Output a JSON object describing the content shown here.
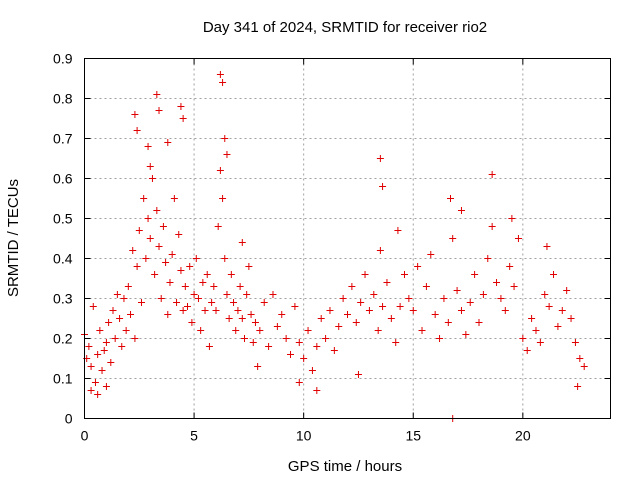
{
  "chart_data": {
    "type": "scatter",
    "title": "Day 341 of 2024, SRMTID for receiver rio2",
    "xlabel": "GPS time / hours",
    "ylabel": "SRMTID / TECUs",
    "xlim": [
      0,
      24
    ],
    "ylim": [
      0,
      0.9
    ],
    "xticks": [
      0,
      5,
      10,
      15,
      20
    ],
    "xtick_labels": [
      "0",
      "5",
      "10",
      "15",
      "20"
    ],
    "yticks": [
      0,
      0.1,
      0.2,
      0.3,
      0.4,
      0.5,
      0.6,
      0.7,
      0.8,
      0.9
    ],
    "ytick_labels": [
      "0",
      "0.1",
      "0.2",
      "0.3",
      "0.4",
      "0.5",
      "0.6",
      "0.7",
      "0.8",
      "0.9"
    ],
    "grid": true,
    "marker": "+",
    "color": "#e00000",
    "series": [
      {
        "name": "SRMTID",
        "x": [
          0.0,
          0.1,
          0.2,
          0.3,
          0.4,
          0.5,
          0.6,
          0.7,
          0.8,
          0.9,
          1.0,
          1.1,
          1.2,
          1.3,
          1.4,
          1.5,
          1.6,
          1.7,
          1.8,
          1.9,
          2.0,
          2.1,
          2.2,
          2.3,
          2.4,
          2.5,
          2.6,
          2.7,
          2.8,
          2.9,
          3.0,
          3.1,
          3.2,
          3.3,
          3.4,
          3.5,
          3.6,
          3.7,
          3.8,
          3.9,
          4.0,
          4.1,
          4.2,
          4.3,
          4.4,
          4.5,
          4.6,
          4.7,
          4.8,
          4.9,
          5.0,
          5.1,
          5.2,
          5.3,
          5.4,
          5.5,
          5.6,
          5.7,
          5.8,
          5.9,
          6.0,
          6.1,
          6.2,
          6.3,
          6.4,
          6.5,
          6.6,
          6.7,
          6.8,
          6.9,
          7.0,
          7.1,
          7.2,
          7.3,
          7.4,
          7.5,
          7.6,
          7.7,
          7.8,
          7.9,
          8.0,
          8.2,
          8.4,
          8.6,
          8.8,
          9.0,
          9.2,
          9.4,
          9.6,
          9.8,
          10.0,
          10.2,
          10.4,
          10.6,
          10.8,
          11.0,
          11.2,
          11.4,
          11.6,
          11.8,
          12.0,
          12.2,
          12.4,
          12.6,
          12.8,
          13.0,
          13.2,
          13.4,
          13.5,
          13.6,
          13.8,
          14.0,
          14.2,
          14.4,
          14.6,
          14.8,
          15.0,
          15.2,
          15.4,
          15.6,
          15.8,
          16.0,
          16.2,
          16.4,
          16.6,
          16.8,
          17.0,
          17.2,
          17.4,
          17.6,
          17.8,
          18.0,
          18.2,
          18.4,
          18.6,
          18.8,
          19.0,
          19.2,
          19.4,
          19.6,
          19.8,
          20.0,
          20.2,
          20.4,
          20.6,
          20.8,
          21.0,
          21.2,
          21.4,
          21.6,
          21.8,
          22.0,
          22.2,
          22.4,
          22.6,
          22.8,
          3.3,
          3.4,
          4.4,
          4.5,
          6.2,
          6.3,
          6.4,
          2.3,
          2.9,
          13.5,
          13.6,
          18.6,
          16.8,
          2.4,
          3.0,
          3.8,
          6.5,
          1.0,
          0.3,
          0.6,
          12.5,
          9.8,
          22.5,
          7.2,
          16.7,
          17.2,
          19.5,
          21.1,
          14.3,
          10.6
        ],
        "y": [
          0.21,
          0.15,
          0.18,
          0.13,
          0.28,
          0.09,
          0.16,
          0.22,
          0.12,
          0.17,
          0.19,
          0.24,
          0.14,
          0.27,
          0.2,
          0.31,
          0.25,
          0.18,
          0.3,
          0.22,
          0.33,
          0.26,
          0.42,
          0.2,
          0.38,
          0.47,
          0.29,
          0.55,
          0.4,
          0.5,
          0.45,
          0.6,
          0.36,
          0.52,
          0.43,
          0.3,
          0.48,
          0.39,
          0.26,
          0.34,
          0.41,
          0.55,
          0.29,
          0.46,
          0.37,
          0.27,
          0.33,
          0.28,
          0.38,
          0.24,
          0.31,
          0.4,
          0.3,
          0.22,
          0.34,
          0.27,
          0.36,
          0.18,
          0.29,
          0.33,
          0.27,
          0.48,
          0.62,
          0.55,
          0.4,
          0.31,
          0.25,
          0.36,
          0.29,
          0.22,
          0.27,
          0.33,
          0.25,
          0.2,
          0.31,
          0.38,
          0.26,
          0.19,
          0.24,
          0.13,
          0.22,
          0.29,
          0.18,
          0.31,
          0.23,
          0.26,
          0.2,
          0.16,
          0.28,
          0.19,
          0.15,
          0.22,
          0.12,
          0.18,
          0.25,
          0.2,
          0.27,
          0.17,
          0.23,
          0.3,
          0.26,
          0.33,
          0.24,
          0.29,
          0.36,
          0.27,
          0.31,
          0.22,
          0.42,
          0.28,
          0.34,
          0.25,
          0.19,
          0.28,
          0.36,
          0.3,
          0.27,
          0.38,
          0.22,
          0.33,
          0.41,
          0.26,
          0.2,
          0.3,
          0.24,
          0.45,
          0.32,
          0.27,
          0.21,
          0.29,
          0.36,
          0.24,
          0.31,
          0.4,
          0.48,
          0.34,
          0.3,
          0.27,
          0.38,
          0.33,
          0.45,
          0.2,
          0.17,
          0.25,
          0.22,
          0.19,
          0.31,
          0.28,
          0.36,
          0.23,
          0.27,
          0.32,
          0.25,
          0.19,
          0.15,
          0.13,
          0.81,
          0.77,
          0.78,
          0.75,
          0.86,
          0.84,
          0.7,
          0.76,
          0.68,
          0.65,
          0.58,
          0.61,
          0.0,
          0.72,
          0.63,
          0.69,
          0.66,
          0.08,
          0.07,
          0.06,
          0.11,
          0.09,
          0.08,
          0.44,
          0.55,
          0.52,
          0.5,
          0.43,
          0.47,
          0.07
        ]
      }
    ]
  }
}
